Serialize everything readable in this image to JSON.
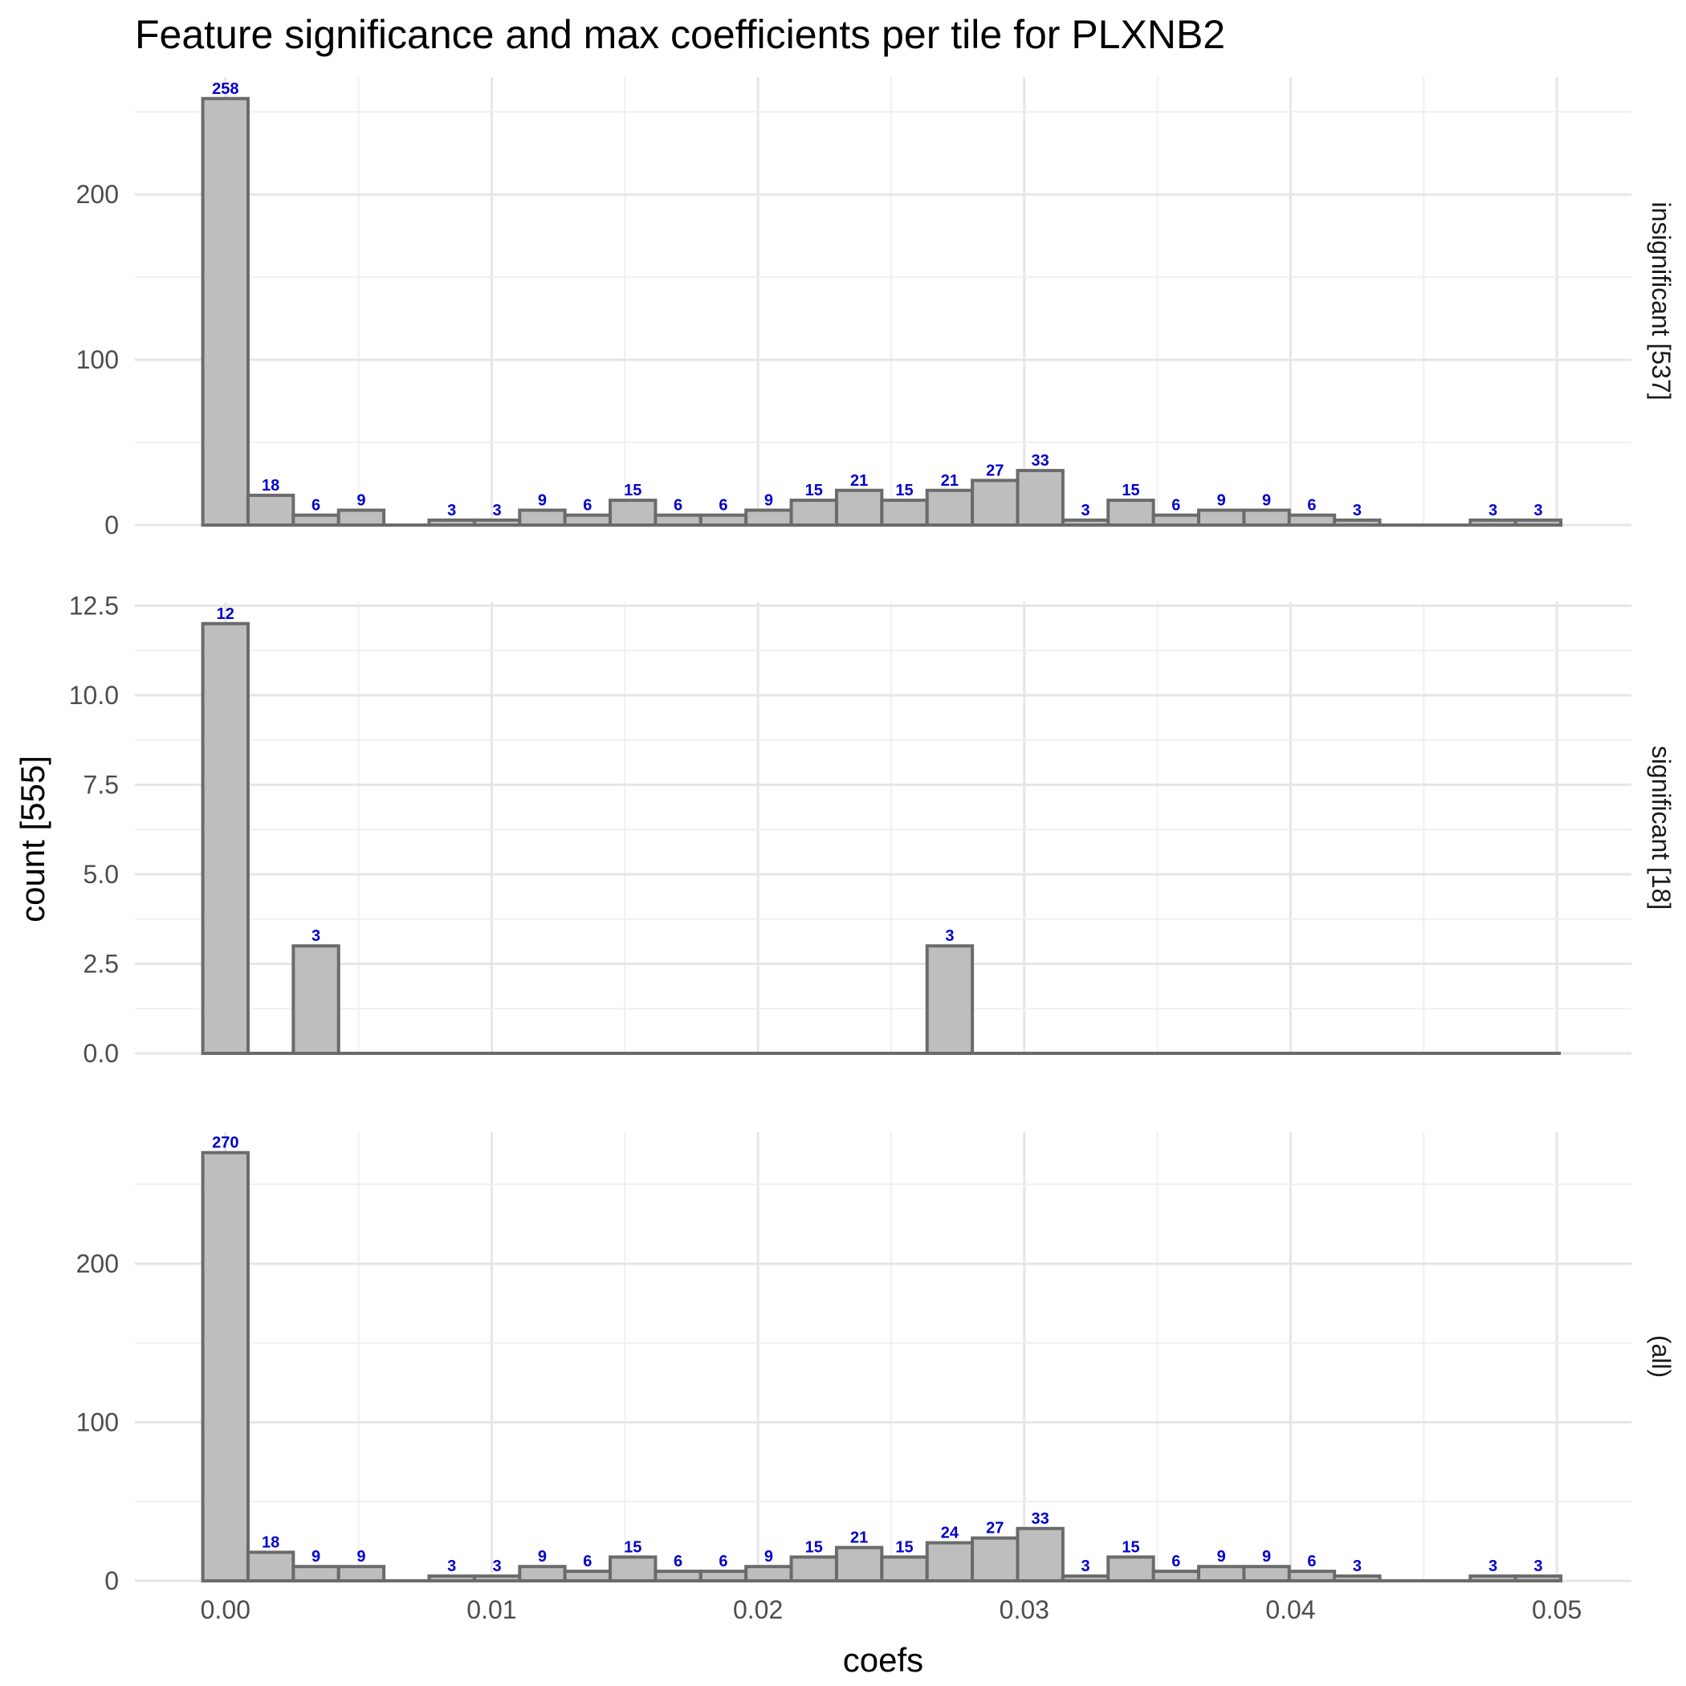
{
  "chart_data": {
    "type": "bar",
    "title": "Feature significance and max coefficients per tile for PLXNB2",
    "xlabel": "coefs",
    "ylabel": "count [555]",
    "x_ticks": [
      "0.00",
      "0.01",
      "0.02",
      "0.03",
      "0.04",
      "0.05"
    ],
    "x_tick_values": [
      0,
      0.01,
      0.02,
      0.03,
      0.04,
      0.05
    ],
    "xlim": [
      -0.0034,
      0.0528
    ],
    "bin_width": 0.0017,
    "bin_centers": [
      0.0,
      0.0017,
      0.0034,
      0.0051,
      0.0068,
      0.0085,
      0.0102,
      0.0119,
      0.0136,
      0.0153,
      0.017,
      0.0187,
      0.0204,
      0.0221,
      0.0238,
      0.0255,
      0.0272,
      0.0289,
      0.0306,
      0.0323,
      0.034,
      0.0357,
      0.0374,
      0.0391,
      0.0408,
      0.0425,
      0.0442,
      0.0459,
      0.0476,
      0.0493
    ],
    "grid": true,
    "panels": [
      {
        "strip_label": "insignificant [537]",
        "ylim": [
          0,
          271
        ],
        "y_ticks": [
          "0",
          "100",
          "200"
        ],
        "y_tick_values": [
          0,
          100,
          200
        ],
        "y_minor_values": [
          50,
          150,
          250
        ],
        "values": [
          258,
          18,
          6,
          9,
          0,
          3,
          3,
          9,
          6,
          15,
          6,
          6,
          9,
          15,
          21,
          15,
          21,
          27,
          33,
          3,
          15,
          6,
          9,
          9,
          6,
          3,
          0,
          0,
          3,
          3
        ]
      },
      {
        "strip_label": "significant [18]",
        "ylim": [
          0,
          12.6
        ],
        "y_ticks": [
          "0.0",
          "2.5",
          "5.0",
          "7.5",
          "10.0",
          "12.5"
        ],
        "y_tick_values": [
          0,
          2.5,
          5,
          7.5,
          10,
          12.5
        ],
        "y_minor_values": [
          1.25,
          3.75,
          6.25,
          8.75,
          11.25
        ],
        "values": [
          12,
          0,
          3,
          0,
          0,
          0,
          0,
          0,
          0,
          0,
          0,
          0,
          0,
          0,
          0,
          0,
          3,
          0,
          0,
          0,
          0,
          0,
          0,
          0,
          0,
          0,
          0,
          0,
          0,
          0
        ]
      },
      {
        "strip_label": "(all)",
        "ylim": [
          0,
          283
        ],
        "y_ticks": [
          "0",
          "100",
          "200"
        ],
        "y_tick_values": [
          0,
          100,
          200
        ],
        "y_minor_values": [
          50,
          150,
          250
        ],
        "values": [
          270,
          18,
          9,
          9,
          0,
          3,
          3,
          9,
          6,
          15,
          6,
          6,
          9,
          15,
          21,
          15,
          24,
          27,
          33,
          3,
          15,
          6,
          9,
          9,
          6,
          3,
          0,
          0,
          3,
          3
        ]
      }
    ],
    "colors": {
      "bar_fill": "#bebebe",
      "bar_outline": "#6b6b6b",
      "data_label": "#0000cc",
      "grid": "#e6e6e6"
    }
  }
}
